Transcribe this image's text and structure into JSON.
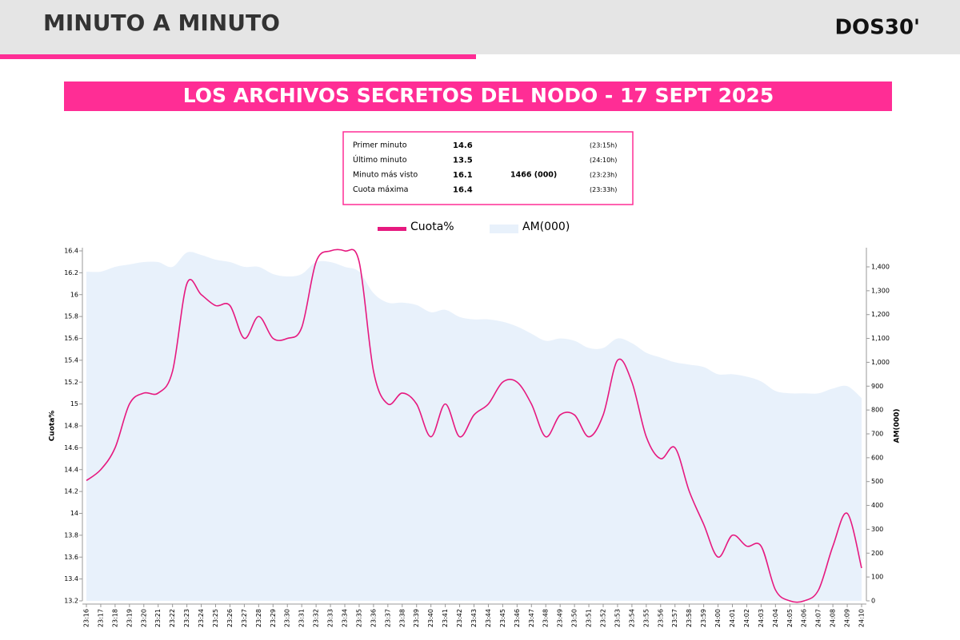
{
  "header": {
    "title": "MINUTO A MINUTO",
    "logo": "DOS30'"
  },
  "summary": {
    "rows": [
      {
        "label": "Primer minuto",
        "value": 14.6,
        "time": "(23:15h)"
      },
      {
        "label": "Último minuto",
        "value": 13.5,
        "time": "(24:10h)"
      },
      {
        "label": "Minuto más visto",
        "value": 16.1,
        "audience": "1466 (000)",
        "time": "(23:23h)"
      },
      {
        "label": "Cuota máxima",
        "value": 16.4,
        "time": "(23:33h)"
      }
    ]
  },
  "chart_data": {
    "type": "line",
    "title": "LOS ARCHIVOS SECRETOS DEL NODO - 17 SEPT 2025",
    "y_label": "Cuota%",
    "y2_label": "AM(000)",
    "legend": "top",
    "categories": [
      "23:16",
      "23:17",
      "23:18",
      "23:19",
      "23:20",
      "23:21",
      "23:22",
      "23:23",
      "23:24",
      "23:25",
      "23:26",
      "23:27",
      "23:28",
      "23:29",
      "23:30",
      "23:31",
      "23:32",
      "23:33",
      "23:34",
      "23:35",
      "23:36",
      "23:37",
      "23:38",
      "23:39",
      "23:40",
      "23:41",
      "23:42",
      "23:43",
      "23:44",
      "23:45",
      "23:46",
      "23:47",
      "23:48",
      "23:49",
      "23:50",
      "23:51",
      "23:52",
      "23:53",
      "23:54",
      "23:55",
      "23:56",
      "23:57",
      "23:58",
      "23:59",
      "24:00",
      "24:01",
      "24:02",
      "24:03",
      "24:04",
      "24:05",
      "24:06",
      "24:07",
      "24:08",
      "24:09",
      "24:10"
    ],
    "series": [
      {
        "name": "Cuota%",
        "type": "line",
        "color": "#e6197f",
        "values": [
          14.3,
          14.4,
          14.6,
          15.0,
          15.1,
          15.1,
          15.3,
          16.1,
          16.0,
          15.9,
          15.9,
          15.6,
          15.8,
          15.6,
          15.6,
          15.7,
          16.3,
          16.4,
          16.4,
          16.3,
          15.3,
          15.0,
          15.1,
          15.0,
          14.7,
          15.0,
          14.7,
          14.9,
          15.0,
          15.2,
          15.2,
          15.0,
          14.7,
          14.9,
          14.9,
          14.7,
          14.9,
          15.4,
          15.2,
          14.7,
          14.5,
          14.6,
          14.2,
          13.9,
          13.6,
          13.8,
          13.7,
          13.7,
          13.3,
          13.2,
          13.2,
          13.3,
          13.7,
          14.0,
          13.5
        ]
      },
      {
        "name": "AM(000)",
        "type": "area",
        "axis": "y2",
        "color": "#e8f1fb",
        "values": [
          1380,
          1380,
          1400,
          1410,
          1420,
          1420,
          1400,
          1460,
          1450,
          1430,
          1420,
          1400,
          1400,
          1370,
          1360,
          1370,
          1420,
          1420,
          1400,
          1380,
          1290,
          1250,
          1250,
          1240,
          1210,
          1220,
          1190,
          1180,
          1180,
          1170,
          1150,
          1120,
          1090,
          1100,
          1090,
          1060,
          1060,
          1100,
          1080,
          1040,
          1020,
          1000,
          990,
          980,
          950,
          950,
          940,
          920,
          880,
          870,
          870,
          870,
          890,
          900,
          850
        ]
      }
    ],
    "ylim": [
      13.2,
      16.4
    ],
    "yticks": [
      13.2,
      13.4,
      13.6,
      13.8,
      14,
      14.2,
      14.4,
      14.6,
      14.8,
      15,
      15.2,
      15.4,
      15.6,
      15.8,
      16,
      16.2,
      16.4
    ],
    "y2lim": [
      0,
      1467
    ],
    "y2ticks": [
      0,
      100,
      200,
      300,
      400,
      500,
      600,
      700,
      800,
      900,
      {
        "value": 1000,
        "label": "1,000"
      },
      {
        "value": 1100,
        "label": "1,100"
      },
      {
        "value": 1200,
        "label": "1,200"
      },
      {
        "value": 1300,
        "label": "1,300"
      },
      {
        "value": 1400,
        "label": "1,400"
      }
    ]
  }
}
